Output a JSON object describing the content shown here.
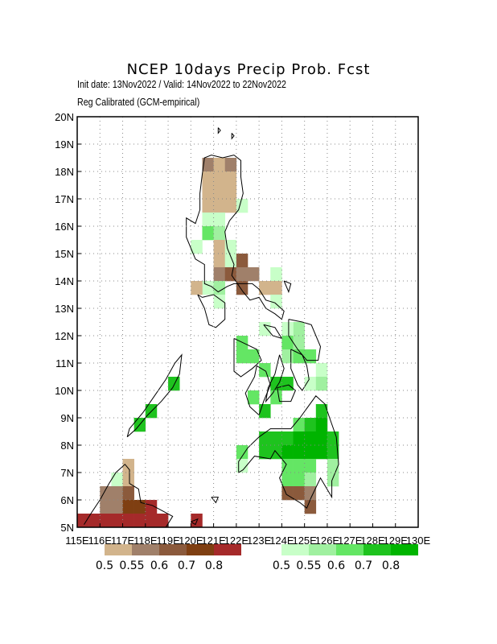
{
  "header": {
    "title": "NCEP 10days Precip Prob. Fcst",
    "subtitle1": "Init date: 13Nov2022 / Valid: 14Nov2022 to 22Nov2022",
    "subtitle2": "Reg Calibrated (GCM-empirical)"
  },
  "map": {
    "lon_range": [
      115,
      130
    ],
    "lat_range": [
      5,
      20
    ],
    "lon_ticks": [
      "115E",
      "116E",
      "117E",
      "118E",
      "119E",
      "120E",
      "121E",
      "122E",
      "123E",
      "124E",
      "125E",
      "126E",
      "127E",
      "128E",
      "129E",
      "130E"
    ],
    "lat_ticks": [
      "5N",
      "6N",
      "7N",
      "8N",
      "9N",
      "10N",
      "11N",
      "12N",
      "13N",
      "14N",
      "15N",
      "16N",
      "17N",
      "18N",
      "19N",
      "20N"
    ],
    "grid": "dotted",
    "cell_size_deg": 0.5
  },
  "legend": {
    "dry": {
      "labels": [
        "0.5",
        "0.55",
        "0.6",
        "0.7",
        "0.8"
      ],
      "colors": [
        "#d2b48c",
        "#a0806a",
        "#8b5a3c",
        "#7f3f12",
        "#a52a2a"
      ]
    },
    "wet": {
      "labels": [
        "0.5",
        "0.55",
        "0.6",
        "0.7",
        "0.8"
      ],
      "colors": [
        "#c8ffc8",
        "#a0f0a0",
        "#64e664",
        "#1ec31e",
        "#00b400"
      ]
    }
  },
  "chart_data": {
    "type": "heatmap",
    "cells": [
      [
        120.5,
        18.0,
        "d2"
      ],
      [
        121.0,
        18.0,
        "d1"
      ],
      [
        121.5,
        18.0,
        "d2"
      ],
      [
        120.5,
        17.5,
        "d1"
      ],
      [
        121.0,
        17.5,
        "d1"
      ],
      [
        121.5,
        17.5,
        "d1"
      ],
      [
        120.5,
        17.0,
        "d1"
      ],
      [
        121.0,
        17.0,
        "d1"
      ],
      [
        121.5,
        17.0,
        "d1"
      ],
      [
        120.5,
        16.5,
        "d1"
      ],
      [
        121.0,
        16.5,
        "d1"
      ],
      [
        121.5,
        16.5,
        "d1"
      ],
      [
        122.0,
        16.5,
        "w1"
      ],
      [
        120.5,
        16.0,
        "w1"
      ],
      [
        121.0,
        16.0,
        "w1"
      ],
      [
        120.5,
        15.5,
        "w3"
      ],
      [
        121.0,
        15.5,
        "w2"
      ],
      [
        120.0,
        15.0,
        "w1"
      ],
      [
        121.0,
        15.0,
        "d1"
      ],
      [
        121.5,
        15.0,
        "w1"
      ],
      [
        121.0,
        14.5,
        "d1"
      ],
      [
        121.5,
        14.5,
        "w1"
      ],
      [
        122.0,
        14.5,
        "d3"
      ],
      [
        121.0,
        14.0,
        "d2"
      ],
      [
        121.5,
        14.0,
        "d3"
      ],
      [
        122.0,
        14.0,
        "d2"
      ],
      [
        122.5,
        14.0,
        "d2"
      ],
      [
        123.5,
        14.0,
        "w1"
      ],
      [
        120.5,
        13.5,
        "w1"
      ],
      [
        121.0,
        13.5,
        "w2"
      ],
      [
        122.0,
        13.5,
        "d3"
      ],
      [
        123.0,
        13.5,
        "d1"
      ],
      [
        120.0,
        13.5,
        "d1"
      ],
      [
        123.5,
        13.5,
        "d1"
      ],
      [
        121.0,
        13.0,
        "w1"
      ],
      [
        123.5,
        13.0,
        "w1"
      ],
      [
        124.5,
        12.0,
        "w2"
      ],
      [
        124.0,
        12.0,
        "w1"
      ],
      [
        123.0,
        12.0,
        "w1"
      ],
      [
        122.0,
        11.5,
        "w3"
      ],
      [
        124.0,
        11.5,
        "w3"
      ],
      [
        124.5,
        11.5,
        "w2"
      ],
      [
        122.0,
        11.0,
        "w3"
      ],
      [
        122.5,
        11.0,
        "w3"
      ],
      [
        124.0,
        11.0,
        "w2"
      ],
      [
        124.5,
        11.0,
        "w3"
      ],
      [
        125.0,
        11.0,
        "w3"
      ],
      [
        123.0,
        10.5,
        "w3"
      ],
      [
        125.5,
        10.5,
        "w1"
      ],
      [
        119.0,
        10.0,
        "w4"
      ],
      [
        123.5,
        10.0,
        "w4"
      ],
      [
        124.0,
        10.0,
        "w4"
      ],
      [
        125.0,
        10.0,
        "w1"
      ],
      [
        125.5,
        10.0,
        "w2"
      ],
      [
        122.5,
        9.5,
        "w3"
      ],
      [
        123.5,
        9.5,
        "w3"
      ],
      [
        118.0,
        9.0,
        "w4"
      ],
      [
        123.0,
        9.0,
        "w4"
      ],
      [
        125.5,
        9.0,
        "w4"
      ],
      [
        117.5,
        8.5,
        "w4"
      ],
      [
        124.5,
        8.5,
        "w3"
      ],
      [
        125.0,
        8.5,
        "w4"
      ],
      [
        125.5,
        8.5,
        "w5"
      ],
      [
        123.0,
        8.0,
        "w4"
      ],
      [
        123.5,
        8.0,
        "w4"
      ],
      [
        124.0,
        8.0,
        "w4"
      ],
      [
        124.5,
        8.0,
        "w5"
      ],
      [
        125.0,
        8.0,
        "w5"
      ],
      [
        125.5,
        8.0,
        "w5"
      ],
      [
        126.0,
        8.0,
        "w4"
      ],
      [
        122.0,
        7.5,
        "w3"
      ],
      [
        123.0,
        7.5,
        "w4"
      ],
      [
        123.5,
        7.5,
        "w4"
      ],
      [
        124.0,
        7.5,
        "w5"
      ],
      [
        124.5,
        7.5,
        "w5"
      ],
      [
        125.0,
        7.5,
        "w5"
      ],
      [
        125.5,
        7.5,
        "w5"
      ],
      [
        126.0,
        7.5,
        "w4"
      ],
      [
        122.0,
        7.0,
        "w1"
      ],
      [
        124.0,
        7.0,
        "w3"
      ],
      [
        124.5,
        7.0,
        "w3"
      ],
      [
        125.0,
        7.0,
        "w3"
      ],
      [
        126.0,
        7.0,
        "w2"
      ],
      [
        117.0,
        7.0,
        "d1"
      ],
      [
        116.5,
        6.5,
        "w1"
      ],
      [
        117.0,
        6.5,
        "d1"
      ],
      [
        124.0,
        6.5,
        "w3"
      ],
      [
        124.5,
        6.5,
        "w3"
      ],
      [
        125.0,
        6.5,
        "w2"
      ],
      [
        126.0,
        6.5,
        "w2"
      ],
      [
        116.0,
        6.0,
        "d2"
      ],
      [
        116.5,
        6.0,
        "d2"
      ],
      [
        117.0,
        6.0,
        "d3"
      ],
      [
        124.0,
        6.0,
        "d3"
      ],
      [
        124.5,
        6.0,
        "d3"
      ],
      [
        125.0,
        6.0,
        "d2"
      ],
      [
        116.0,
        5.5,
        "d2"
      ],
      [
        116.5,
        5.5,
        "d2"
      ],
      [
        117.0,
        5.5,
        "d4"
      ],
      [
        117.5,
        5.5,
        "d4"
      ],
      [
        118.0,
        5.5,
        "d5"
      ],
      [
        125.0,
        5.5,
        "d3"
      ],
      [
        115.0,
        5.0,
        "d5"
      ],
      [
        115.5,
        5.0,
        "d5"
      ],
      [
        116.0,
        5.0,
        "d5"
      ],
      [
        116.5,
        5.0,
        "d5"
      ],
      [
        117.0,
        5.0,
        "d5"
      ],
      [
        117.5,
        5.0,
        "d5"
      ],
      [
        118.0,
        5.0,
        "d5"
      ],
      [
        118.5,
        5.0,
        "d5"
      ],
      [
        120.0,
        5.0,
        "d5"
      ]
    ]
  }
}
